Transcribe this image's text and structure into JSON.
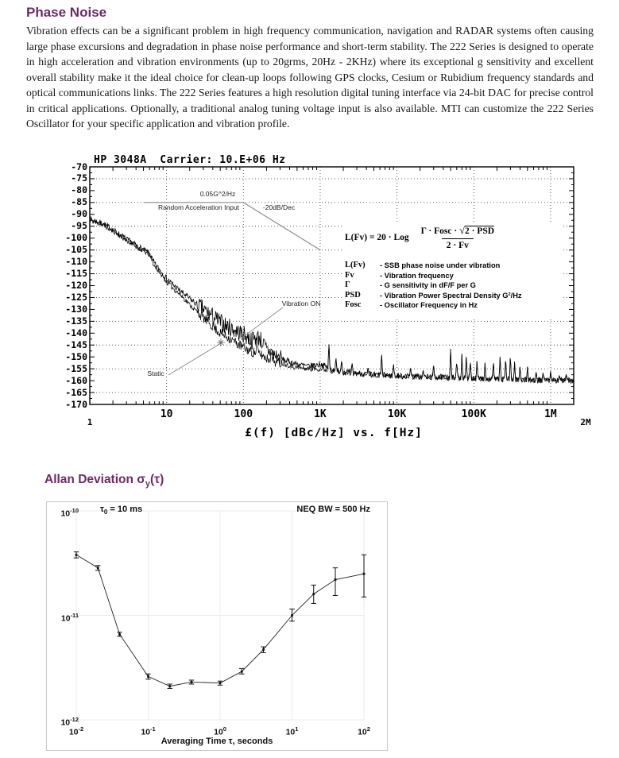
{
  "page": {
    "heading": "Phase Noise",
    "paragraph": "Vibration effects can be a significant problem in high frequency communication, navigation and RADAR systems often causing large phase excursions and degradation in phase noise performance and short-term stability.  The 222 Series is designed to operate in high acceleration and vibration environments (up to 20grms, 20Hz - 2KHz) where its exceptional g sensitivity and excellent overall stability make it the ideal choice for clean-up loops following GPS clocks, Cesium or Rubidium frequency standards and optical communications links.  The 222 Series features a high resolution digital tuning interface via 24-bit DAC for precise control in critical applications. Optionally, a traditional analog tuning voltage input is also available. MTI can customize the 222 Series Oscillator for your specific application and vibration profile.",
    "allan_heading": {
      "prefix": "Allan Deviation σ",
      "sub": "y",
      "suffix": "(τ)"
    }
  },
  "chart_data": [
    {
      "type": "line",
      "title": "HP 3048A  Carrier: 10.E+06 Hz",
      "xlabel": "£(f) [dBc/Hz] vs. f[Hz]",
      "x_axis": {
        "scale": "log",
        "min_hz": 1,
        "max_hz": 2000000,
        "tick_values": [
          10,
          100,
          1000,
          10000,
          100000,
          1000000
        ],
        "tick_labels": [
          "10",
          "100",
          "1K",
          "10K",
          "100K",
          "1M"
        ],
        "end_labels": [
          "1",
          "2M"
        ]
      },
      "y_axis": {
        "min": -170,
        "max": -70,
        "label_step": 5,
        "unit": "dBc/Hz",
        "gridlines_db": [
          -75,
          -85,
          -95,
          -105,
          -115,
          -125,
          -135,
          -145,
          -155,
          -165
        ]
      },
      "annotations": {
        "psd_level": "0.05G^2/Hz",
        "accel_profile": "Random Acceleration Input",
        "slope": "-20dB/Dec",
        "vibration_on": "Vibration ON",
        "static": "Static"
      },
      "series": [
        {
          "name": "Static",
          "anchors_hz_db": [
            [
              1,
              -92.5
            ],
            [
              1.5,
              -94.5
            ],
            [
              2,
              -97
            ],
            [
              3,
              -101
            ],
            [
              4,
              -103.5
            ],
            [
              5,
              -105.5
            ],
            [
              6,
              -107
            ],
            [
              7,
              -112
            ],
            [
              8,
              -114
            ],
            [
              10,
              -118.5
            ],
            [
              13,
              -122
            ],
            [
              16,
              -124.5
            ],
            [
              20,
              -128
            ],
            [
              25,
              -131
            ],
            [
              30,
              -133.5
            ],
            [
              40,
              -137
            ],
            [
              50,
              -140
            ],
            [
              65,
              -142
            ],
            [
              80,
              -144
            ],
            [
              100,
              -146
            ],
            [
              130,
              -148
            ],
            [
              160,
              -148.5
            ],
            [
              200,
              -150.5
            ],
            [
              260,
              -152
            ],
            [
              350,
              -153
            ],
            [
              500,
              -154.5
            ],
            [
              700,
              -155
            ],
            [
              1000,
              -155
            ],
            [
              1500,
              -156
            ],
            [
              2500,
              -157
            ],
            [
              5000,
              -157.5
            ],
            [
              10000,
              -158
            ],
            [
              30000,
              -158.5
            ],
            [
              100000,
              -159
            ],
            [
              300000,
              -159.5
            ],
            [
              1000000,
              -160
            ],
            [
              2000000,
              -160
            ]
          ]
        },
        {
          "name": "Vibration ON",
          "anchors_hz_db": [
            [
              1,
              -92
            ],
            [
              1.5,
              -94
            ],
            [
              2,
              -96.5
            ],
            [
              3,
              -100.5
            ],
            [
              4,
              -103
            ],
            [
              5,
              -105
            ],
            [
              6,
              -106.5
            ],
            [
              7,
              -111
            ],
            [
              8,
              -113
            ],
            [
              10,
              -117
            ],
            [
              13,
              -120.5
            ],
            [
              16,
              -123
            ],
            [
              20,
              -125.5
            ],
            [
              25,
              -128
            ],
            [
              30,
              -130
            ],
            [
              40,
              -133
            ],
            [
              50,
              -135.5
            ],
            [
              65,
              -137.5
            ],
            [
              80,
              -139
            ],
            [
              100,
              -140.5
            ],
            [
              130,
              -143
            ],
            [
              160,
              -141.5
            ],
            [
              200,
              -147
            ],
            [
              260,
              -149.5
            ],
            [
              350,
              -151.5
            ],
            [
              500,
              -153
            ],
            [
              700,
              -154
            ],
            [
              1000,
              -153
            ],
            [
              1500,
              -155.5
            ],
            [
              2500,
              -156.5
            ],
            [
              5000,
              -157.5
            ],
            [
              10000,
              -158
            ],
            [
              30000,
              -158.5
            ],
            [
              100000,
              -159
            ],
            [
              300000,
              -159.5
            ],
            [
              1000000,
              -160
            ],
            [
              2000000,
              -160
            ]
          ]
        },
        {
          "name": "Random Acceleration Input profile",
          "points_hz_db": [
            [
              5,
              -85
            ],
            [
              100,
              -85
            ],
            [
              1000,
              -105
            ]
          ]
        }
      ],
      "spurs_hz_db": [
        [
          150,
          -140
        ],
        [
          230,
          -146
        ],
        [
          1300,
          -142
        ],
        [
          1600,
          -149
        ],
        [
          1900,
          -150
        ],
        [
          2600,
          -152
        ],
        [
          4200,
          -154
        ],
        [
          6300,
          -146
        ],
        [
          9000,
          -152
        ],
        [
          15000,
          -153
        ],
        [
          22000,
          -155
        ],
        [
          30000,
          -152
        ],
        [
          50000,
          -144
        ],
        [
          60000,
          -150
        ],
        [
          70000,
          -148
        ],
        [
          80000,
          -147
        ],
        [
          90000,
          -150
        ],
        [
          110000,
          -151
        ],
        [
          140000,
          -152
        ],
        [
          180000,
          -150
        ],
        [
          220000,
          -149
        ],
        [
          260000,
          -148
        ],
        [
          300000,
          -147
        ],
        [
          340000,
          -151
        ],
        [
          400000,
          -153
        ],
        [
          500000,
          -154
        ],
        [
          650000,
          -155
        ],
        [
          800000,
          -156
        ],
        [
          1000000,
          -156
        ],
        [
          1300000,
          -157
        ],
        [
          1600000,
          -157
        ]
      ],
      "formula": {
        "lhs": "L(Fv) = 20 · Log",
        "numerator_prefix": "Γ · Fosc · ",
        "sqrt_content": "2 · PSD",
        "denominator": "2 · Fv",
        "legend": [
          {
            "term": "L(Fv)",
            "desc": "- SSB phase noise under vibration"
          },
          {
            "term": "Fv",
            "desc": "- Vibration frequency"
          },
          {
            "term": "Γ",
            "desc": "- G sensitivity in dF/F per G"
          },
          {
            "term": "PSD",
            "desc": "- Vibration Power Spectral Density G²/Hz"
          },
          {
            "term": "Fosc",
            "desc": "- Oscillator Frequency in Hz"
          }
        ]
      }
    },
    {
      "type": "scatter-line",
      "title_left": {
        "prefix": "τ",
        "sub": "0",
        "rest": " = 10 ms"
      },
      "title_right": "NEQ BW = 500 Hz",
      "xlabel": "Averaging Time τ, seconds",
      "x_axis": {
        "scale": "log",
        "tick_exponents": [
          -2,
          -1,
          0,
          1,
          2
        ],
        "unit": "seconds"
      },
      "y_axis": {
        "scale": "log",
        "tick_exponents": [
          -10,
          -11,
          -12
        ],
        "unit": "Allan deviation"
      },
      "points": [
        {
          "tau": 0.01,
          "adev": 3.8e-11,
          "err_lo": 3.55e-11,
          "err_hi": 4.05e-11
        },
        {
          "tau": 0.02,
          "adev": 2.85e-11,
          "err_lo": 2.7e-11,
          "err_hi": 3e-11
        },
        {
          "tau": 0.04,
          "adev": 6.6e-12,
          "err_lo": 6.3e-12,
          "err_hi": 6.9e-12
        },
        {
          "tau": 0.1,
          "adev": 2.6e-12,
          "err_lo": 2.45e-12,
          "err_hi": 2.75e-12
        },
        {
          "tau": 0.2,
          "adev": 2.1e-12,
          "err_lo": 2e-12,
          "err_hi": 2.2e-12
        },
        {
          "tau": 0.4,
          "adev": 2.3e-12,
          "err_lo": 2.2e-12,
          "err_hi": 2.4e-12
        },
        {
          "tau": 1,
          "adev": 2.25e-12,
          "err_lo": 2.15e-12,
          "err_hi": 2.35e-12
        },
        {
          "tau": 2,
          "adev": 2.9e-12,
          "err_lo": 2.75e-12,
          "err_hi": 3.1e-12
        },
        {
          "tau": 4,
          "adev": 4.7e-12,
          "err_lo": 4.4e-12,
          "err_hi": 5e-12
        },
        {
          "tau": 10,
          "adev": 1e-11,
          "err_lo": 8.8e-12,
          "err_hi": 1.15e-11
        },
        {
          "tau": 20,
          "adev": 1.6e-11,
          "err_lo": 1.3e-11,
          "err_hi": 1.95e-11
        },
        {
          "tau": 40,
          "adev": 2.2e-11,
          "err_lo": 1.55e-11,
          "err_hi": 2.85e-11
        },
        {
          "tau": 100,
          "adev": 2.5e-11,
          "err_lo": 1.5e-11,
          "err_hi": 3.8e-11
        }
      ]
    }
  ]
}
